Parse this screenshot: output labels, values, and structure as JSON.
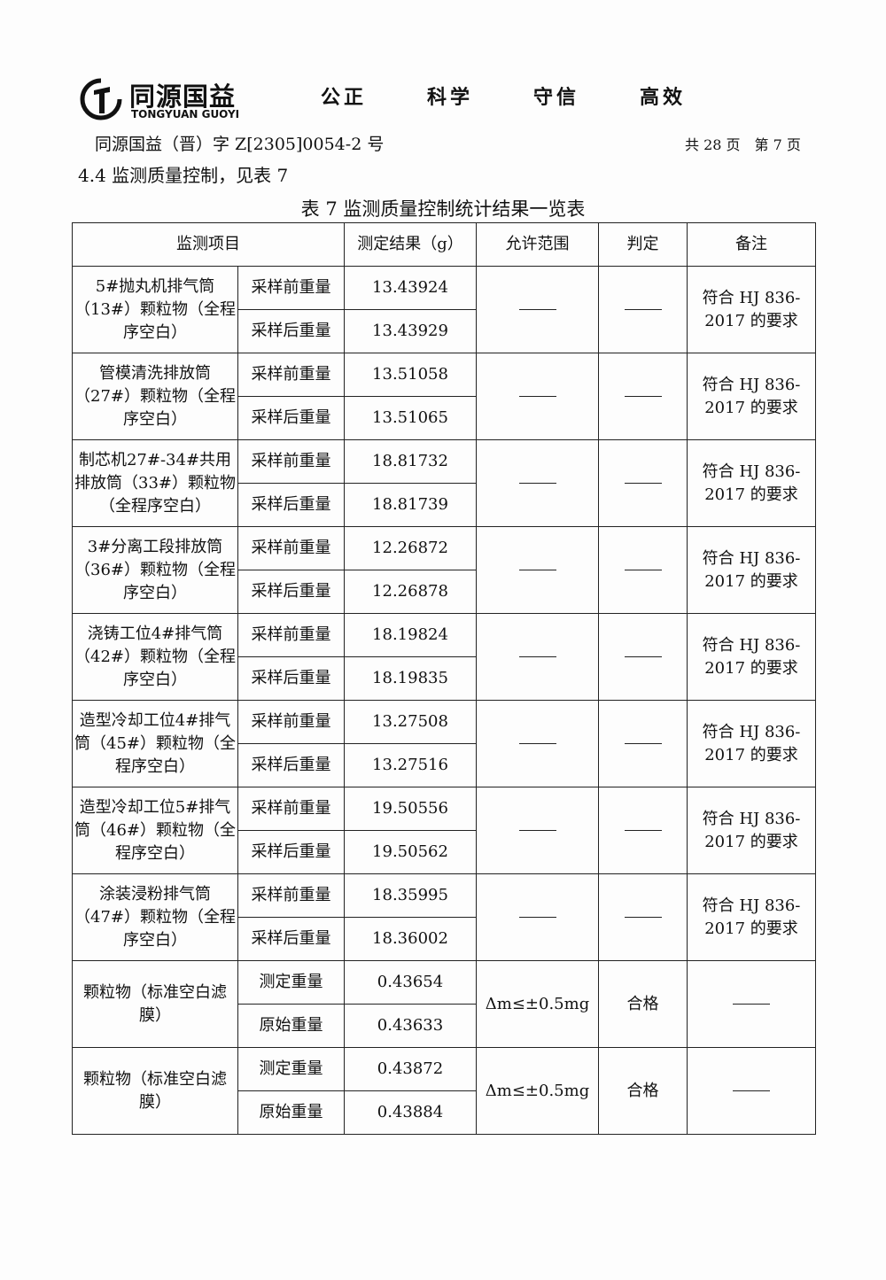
{
  "header": {
    "brand_cn": "同源国益",
    "brand_en": "TONGYUAN GUOYI",
    "mottos": [
      "公正",
      "科学",
      "守信",
      "高效"
    ],
    "doc_number": "同源国益（晋）字 Z[2305]0054-2 号",
    "page_info": "共 28 页　第 7 页"
  },
  "section_heading": "4.4 监测质量控制，见表 7",
  "table": {
    "title": "表 7 监测质量控制统计结果一览表",
    "columns": [
      "监测项目",
      "测定结果（g）",
      "允许范围",
      "判定",
      "备注"
    ],
    "groups": [
      {
        "item": "5#抛丸机排气筒（13#）颗粒物（全程序空白）",
        "rows": [
          [
            "采样前重量",
            "13.43924"
          ],
          [
            "采样后重量",
            "13.43929"
          ]
        ],
        "range": "——",
        "judge": "——",
        "note": "符合 HJ 836-2017 的要求"
      },
      {
        "item": "管模清洗排放筒（27#）颗粒物（全程序空白）",
        "rows": [
          [
            "采样前重量",
            "13.51058"
          ],
          [
            "采样后重量",
            "13.51065"
          ]
        ],
        "range": "——",
        "judge": "——",
        "note": "符合 HJ 836-2017 的要求"
      },
      {
        "item": "制芯机27#-34#共用排放筒（33#）颗粒物（全程序空白）",
        "rows": [
          [
            "采样前重量",
            "18.81732"
          ],
          [
            "采样后重量",
            "18.81739"
          ]
        ],
        "range": "——",
        "judge": "——",
        "note": "符合 HJ 836-2017 的要求"
      },
      {
        "item": "3#分离工段排放筒（36#）颗粒物（全程序空白）",
        "rows": [
          [
            "采样前重量",
            "12.26872"
          ],
          [
            "采样后重量",
            "12.26878"
          ]
        ],
        "range": "——",
        "judge": "——",
        "note": "符合 HJ 836-2017 的要求"
      },
      {
        "item": "浇铸工位4#排气筒（42#）颗粒物（全程序空白）",
        "rows": [
          [
            "采样前重量",
            "18.19824"
          ],
          [
            "采样后重量",
            "18.19835"
          ]
        ],
        "range": "——",
        "judge": "——",
        "note": "符合 HJ 836-2017 的要求"
      },
      {
        "item": "造型冷却工位4#排气筒（45#）颗粒物（全程序空白）",
        "rows": [
          [
            "采样前重量",
            "13.27508"
          ],
          [
            "采样后重量",
            "13.27516"
          ]
        ],
        "range": "——",
        "judge": "——",
        "note": "符合 HJ 836-2017 的要求"
      },
      {
        "item": "造型冷却工位5#排气筒（46#）颗粒物（全程序空白）",
        "rows": [
          [
            "采样前重量",
            "19.50556"
          ],
          [
            "采样后重量",
            "19.50562"
          ]
        ],
        "range": "——",
        "judge": "——",
        "note": "符合 HJ 836-2017 的要求"
      },
      {
        "item": "涂装浸粉排气筒（47#）颗粒物（全程序空白）",
        "rows": [
          [
            "采样前重量",
            "18.35995"
          ],
          [
            "采样后重量",
            "18.36002"
          ]
        ],
        "range": "——",
        "judge": "——",
        "note": "符合 HJ 836-2017 的要求"
      },
      {
        "item": "颗粒物（标准空白滤膜）",
        "rows": [
          [
            "测定重量",
            "0.43654"
          ],
          [
            "原始重量",
            "0.43633"
          ]
        ],
        "range": "Δm≤±0.5mg",
        "judge": "合格",
        "note": "——"
      },
      {
        "item": "颗粒物（标准空白滤膜）",
        "rows": [
          [
            "测定重量",
            "0.43872"
          ],
          [
            "原始重量",
            "0.43884"
          ]
        ],
        "range": "Δm≤±0.5mg",
        "judge": "合格",
        "note": "——"
      }
    ]
  }
}
